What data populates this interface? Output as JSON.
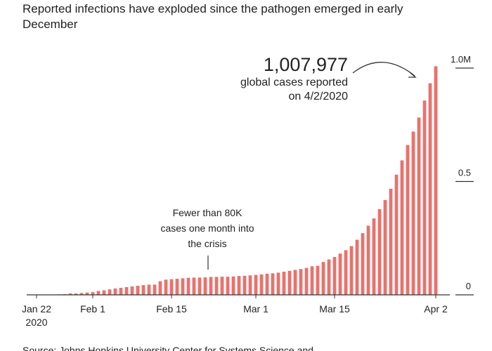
{
  "chart_data": {
    "type": "bar",
    "title": "Reported infections have exploded since the pathogen emerged in early December",
    "x": [
      "2020-01-22",
      "2020-01-23",
      "2020-01-24",
      "2020-01-25",
      "2020-01-26",
      "2020-01-27",
      "2020-01-28",
      "2020-01-29",
      "2020-01-30",
      "2020-01-31",
      "2020-02-01",
      "2020-02-02",
      "2020-02-03",
      "2020-02-04",
      "2020-02-05",
      "2020-02-06",
      "2020-02-07",
      "2020-02-08",
      "2020-02-09",
      "2020-02-10",
      "2020-02-11",
      "2020-02-12",
      "2020-02-13",
      "2020-02-14",
      "2020-02-15",
      "2020-02-16",
      "2020-02-17",
      "2020-02-18",
      "2020-02-19",
      "2020-02-20",
      "2020-02-21",
      "2020-02-22",
      "2020-02-23",
      "2020-02-24",
      "2020-02-25",
      "2020-02-26",
      "2020-02-27",
      "2020-02-28",
      "2020-02-29",
      "2020-03-01",
      "2020-03-02",
      "2020-03-03",
      "2020-03-04",
      "2020-03-05",
      "2020-03-06",
      "2020-03-07",
      "2020-03-08",
      "2020-03-09",
      "2020-03-10",
      "2020-03-11",
      "2020-03-12",
      "2020-03-13",
      "2020-03-14",
      "2020-03-15",
      "2020-03-16",
      "2020-03-17",
      "2020-03-18",
      "2020-03-19",
      "2020-03-20",
      "2020-03-21",
      "2020-03-22",
      "2020-03-23",
      "2020-03-24",
      "2020-03-25",
      "2020-03-26",
      "2020-03-27",
      "2020-03-28",
      "2020-03-29",
      "2020-03-30",
      "2020-03-31",
      "2020-04-01",
      "2020-04-02"
    ],
    "values": [
      0.001,
      0.001,
      0.001,
      0.001,
      0.002,
      0.003,
      0.006,
      0.006,
      0.008,
      0.01,
      0.012,
      0.017,
      0.02,
      0.024,
      0.028,
      0.031,
      0.034,
      0.037,
      0.04,
      0.043,
      0.045,
      0.045,
      0.06,
      0.067,
      0.069,
      0.071,
      0.073,
      0.075,
      0.076,
      0.076,
      0.077,
      0.079,
      0.079,
      0.08,
      0.08,
      0.081,
      0.083,
      0.084,
      0.086,
      0.088,
      0.09,
      0.093,
      0.095,
      0.098,
      0.102,
      0.106,
      0.11,
      0.114,
      0.119,
      0.126,
      0.128,
      0.145,
      0.156,
      0.167,
      0.182,
      0.197,
      0.215,
      0.243,
      0.272,
      0.305,
      0.337,
      0.378,
      0.418,
      0.468,
      0.53,
      0.593,
      0.661,
      0.72,
      0.782,
      0.857,
      0.933,
      1.008
    ],
    "color": "#e8726d",
    "ylim": [
      0,
      1
    ],
    "yticks": [
      0,
      0.5,
      {
        "value": 1,
        "label": "1.0M"
      }
    ],
    "xticks": [
      {
        "value": "2020-01-22",
        "label": [
          "Jan 22",
          "2020"
        ]
      },
      {
        "value": "2020-02-01",
        "label": [
          "Feb 1"
        ]
      },
      {
        "value": "2020-02-15",
        "label": [
          "Feb 15"
        ]
      },
      {
        "value": "2020-03-01",
        "label": [
          "Mar 1"
        ]
      },
      {
        "value": "2020-03-15",
        "label": [
          "Mar 15"
        ]
      },
      {
        "value": "2020-04-02",
        "label": [
          "Apr 2"
        ]
      }
    ],
    "annotations": [
      {
        "label": "1,007,977",
        "lines": [
          "global cases reported",
          "on 4/2/2020"
        ]
      },
      {
        "lines": [
          "Fewer than 80K",
          "cases one month into",
          "the crisis"
        ]
      }
    ],
    "source": "Source: Johns Hopkins University Center for Systems Science and"
  }
}
